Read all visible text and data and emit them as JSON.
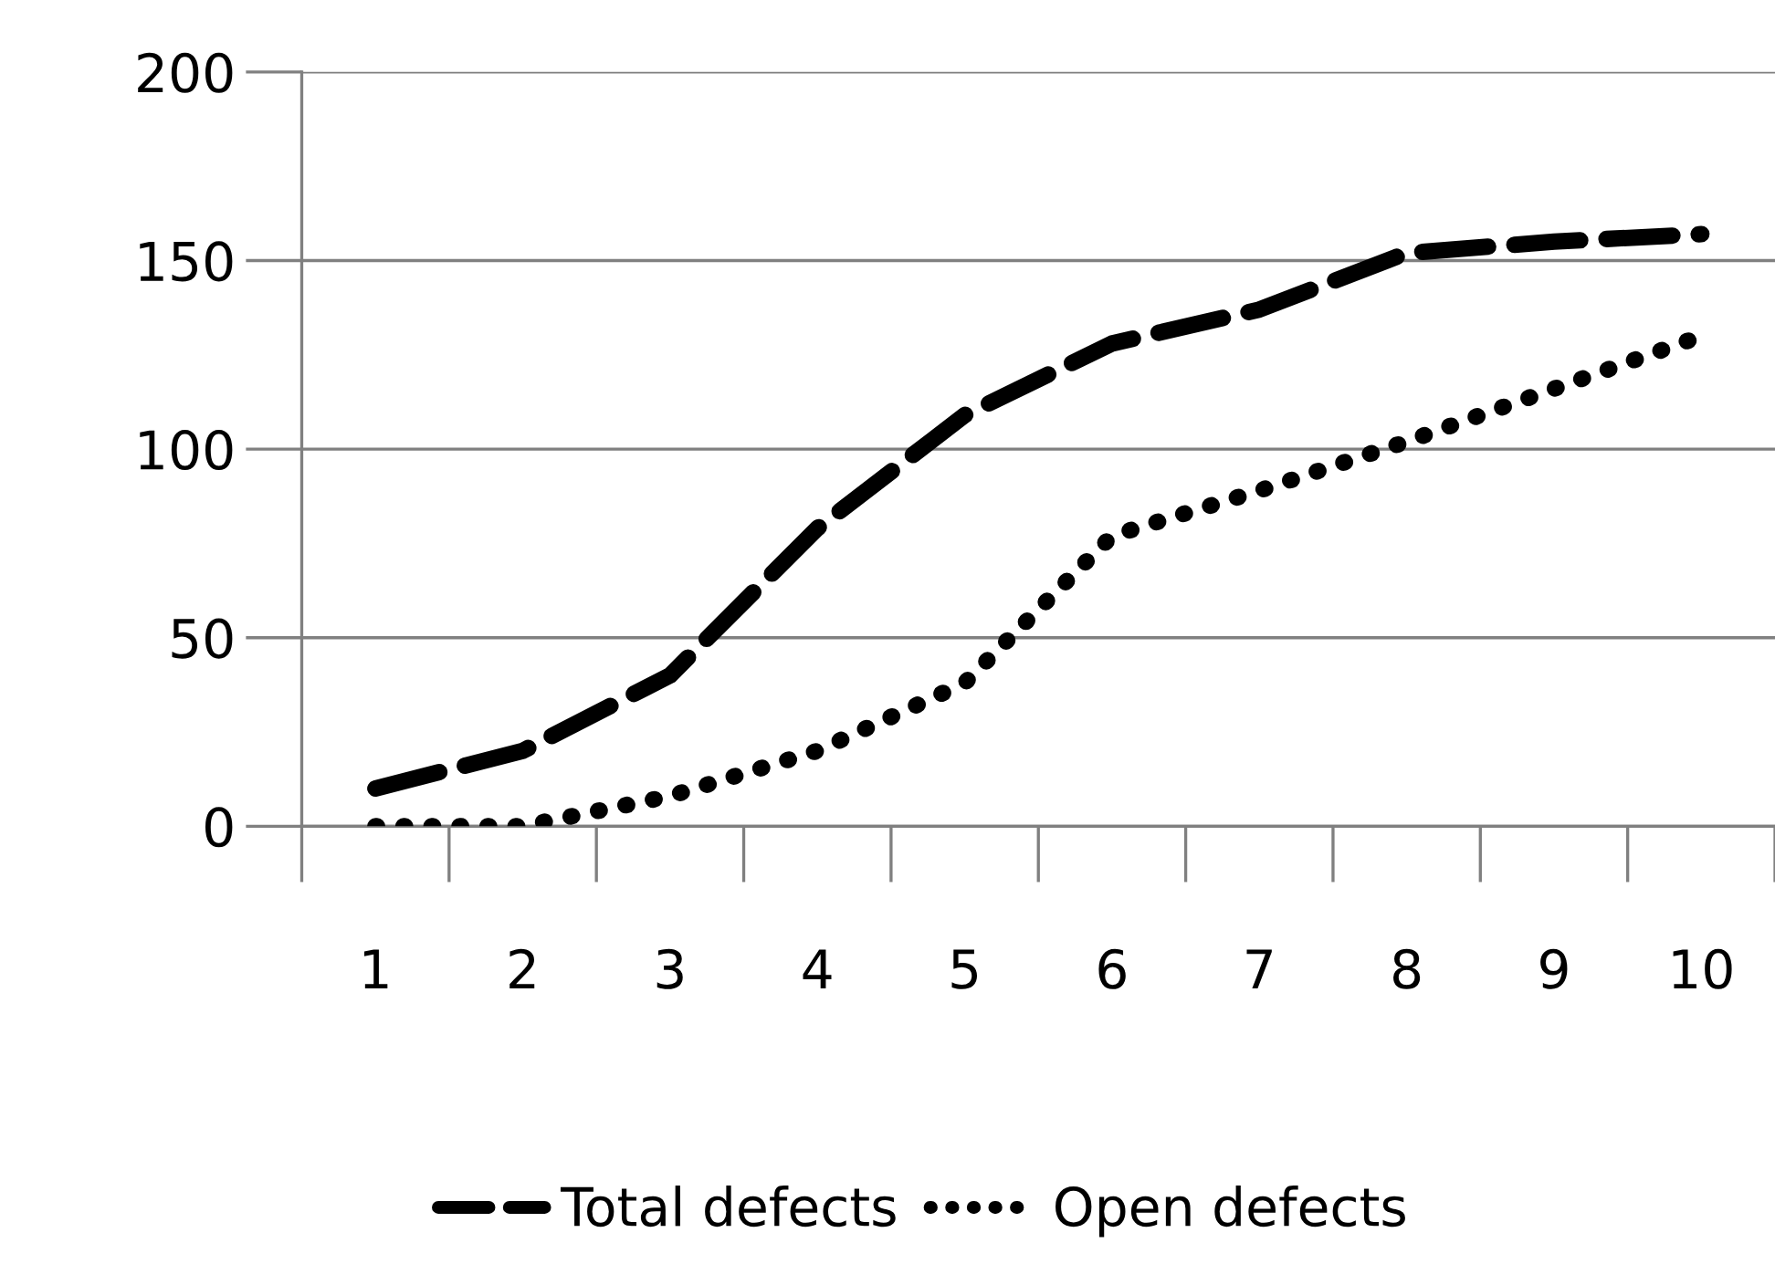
{
  "chart_data": {
    "type": "line",
    "categories": [
      "1",
      "2",
      "3",
      "4",
      "5",
      "6",
      "7",
      "8",
      "9",
      "10"
    ],
    "series": [
      {
        "name": "Total defects",
        "color": "#000000",
        "line_style": "dashed",
        "values": [
          10,
          20,
          40,
          79,
          109,
          128,
          137,
          152,
          155,
          157
        ]
      },
      {
        "name": "Open defects",
        "color": "#000000",
        "line_style": "dotted",
        "values": [
          0,
          0,
          8,
          20,
          38,
          77,
          89,
          102,
          116,
          130
        ]
      }
    ],
    "ylim": [
      0,
      200
    ],
    "yticks": [
      0,
      50,
      100,
      150,
      200
    ],
    "grid": "y",
    "legend": "bottom",
    "marker": "none"
  }
}
